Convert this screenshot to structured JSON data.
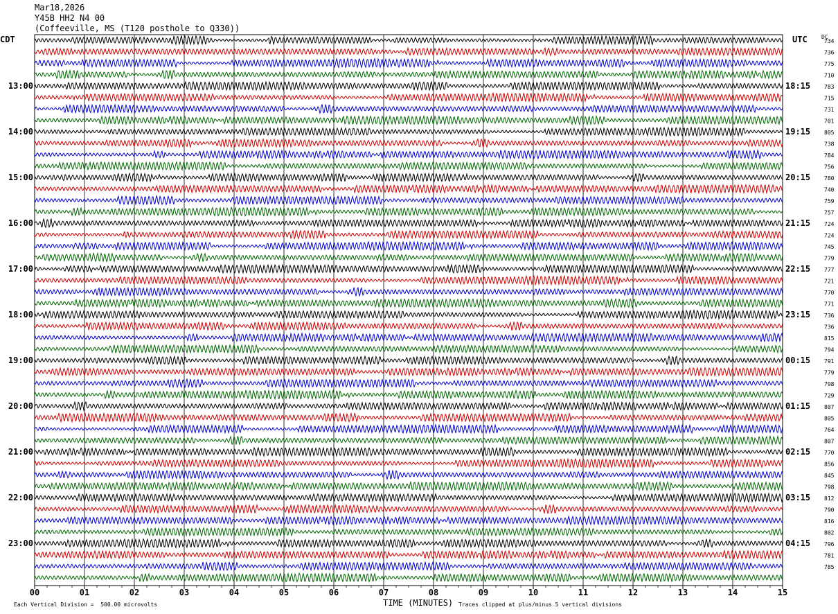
{
  "header": {
    "date": "Mar18,2026",
    "station": "Y45B HH2 N4 00",
    "location": "(Coffeeville, MS (T120 posthole to Q330))"
  },
  "left_tz": "CDT",
  "right_tz": "UTC",
  "dc_label": "DC",
  "footer": {
    "left": "Each Vertical Division =  500.00 microvolts",
    "center": "TIME (MINUTES)",
    "right": "Traces clipped at plus/minus 5 vertical divisions"
  },
  "colors": {
    "trace_cycle": [
      "#000000",
      "#cc0000",
      "#0000cc",
      "#006600"
    ],
    "grid": "#000000"
  },
  "chart_data": {
    "type": "line",
    "title": "",
    "xlabel": "TIME (MINUTES)",
    "x_ticks": [
      "00",
      "01",
      "02",
      "03",
      "04",
      "05",
      "06",
      "07",
      "08",
      "09",
      "10",
      "11",
      "12",
      "13",
      "14",
      "15"
    ],
    "xlim": [
      0,
      15
    ],
    "left_hour_labels": [
      "13:00",
      "14:00",
      "15:00",
      "16:00",
      "17:00",
      "18:00",
      "19:00",
      "20:00",
      "21:00",
      "22:00",
      "23:00"
    ],
    "right_hour_labels": [
      "18:15",
      "19:15",
      "20:15",
      "21:15",
      "22:15",
      "23:15",
      "00:15",
      "01:15",
      "02:15",
      "03:15",
      "04:15"
    ],
    "trace_count": 48,
    "dc_offsets": [
      734,
      736,
      775,
      710,
      783,
      715,
      731,
      701,
      805,
      738,
      784,
      756,
      780,
      740,
      759,
      757,
      724,
      724,
      745,
      779,
      777,
      721,
      770,
      771,
      736,
      736,
      815,
      794,
      791,
      779,
      798,
      729,
      807,
      805,
      764,
      807,
      770,
      856,
      845,
      798,
      812,
      790,
      816,
      802,
      796,
      781,
      785
    ]
  }
}
